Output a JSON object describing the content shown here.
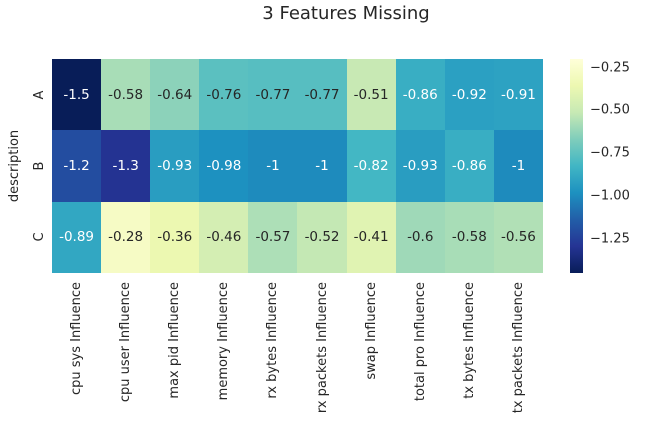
{
  "title": "3 Features Missing",
  "colors": {
    "background": "#ffffff",
    "text": "#262626",
    "annotation_light": "#ffffff",
    "annotation_dark": "#262626"
  },
  "chart_data": {
    "type": "heatmap",
    "title": "3 Features Missing",
    "xlabel": "",
    "ylabel": "description",
    "rows": [
      "A",
      "B",
      "C"
    ],
    "columns": [
      "cpu sys Influence",
      "cpu user Influence",
      "max pid Influence",
      "memory Influence",
      "rx bytes Influence",
      "rx packets Influence",
      "swap Influence",
      "total pro Influence",
      "tx bytes Influence",
      "tx packets Influence"
    ],
    "values": [
      [
        -1.5,
        -0.58,
        -0.64,
        -0.76,
        -0.77,
        -0.77,
        -0.51,
        -0.86,
        -0.92,
        -0.91
      ],
      [
        -1.2,
        -1.3,
        -0.93,
        -0.98,
        -1,
        -1,
        -0.82,
        -0.93,
        -0.86,
        -1
      ],
      [
        -0.89,
        -0.28,
        -0.36,
        -0.46,
        -0.57,
        -0.52,
        -0.41,
        -0.6,
        -0.58,
        -0.56
      ]
    ],
    "cell_labels": [
      [
        "-1.5",
        "-0.58",
        "-0.64",
        "-0.76",
        "-0.77",
        "-0.77",
        "-0.51",
        "-0.86",
        "-0.92",
        "-0.91"
      ],
      [
        "-1.2",
        "-1.3",
        "-0.93",
        "-0.98",
        "-1",
        "-1",
        "-0.82",
        "-0.93",
        "-0.86",
        "-1"
      ],
      [
        "-0.89",
        "-0.28",
        "-0.36",
        "-0.46",
        "-0.57",
        "-0.52",
        "-0.41",
        "-0.6",
        "-0.58",
        "-0.56"
      ]
    ],
    "grid": false,
    "legend_position": "right-colorbar",
    "colormap": {
      "name": "YlGnBu_r",
      "norm_light_value": -0.2,
      "norm_dark_value": -1.45,
      "stops": [
        [
          0.0,
          "#ffffd9"
        ],
        [
          0.125,
          "#edf8b1"
        ],
        [
          0.25,
          "#c7e9b4"
        ],
        [
          0.375,
          "#7fcdbb"
        ],
        [
          0.5,
          "#41b6c4"
        ],
        [
          0.625,
          "#1d91c0"
        ],
        [
          0.75,
          "#225ea8"
        ],
        [
          0.875,
          "#253494"
        ],
        [
          1.0,
          "#081d58"
        ]
      ]
    },
    "colorbar_ticks": [
      {
        "label": "−0.25",
        "value": -0.25
      },
      {
        "label": "−0.50",
        "value": -0.5
      },
      {
        "label": "−0.75",
        "value": -0.75
      },
      {
        "label": "−1.00",
        "value": -1.0
      },
      {
        "label": "−1.25",
        "value": -1.25
      }
    ]
  }
}
